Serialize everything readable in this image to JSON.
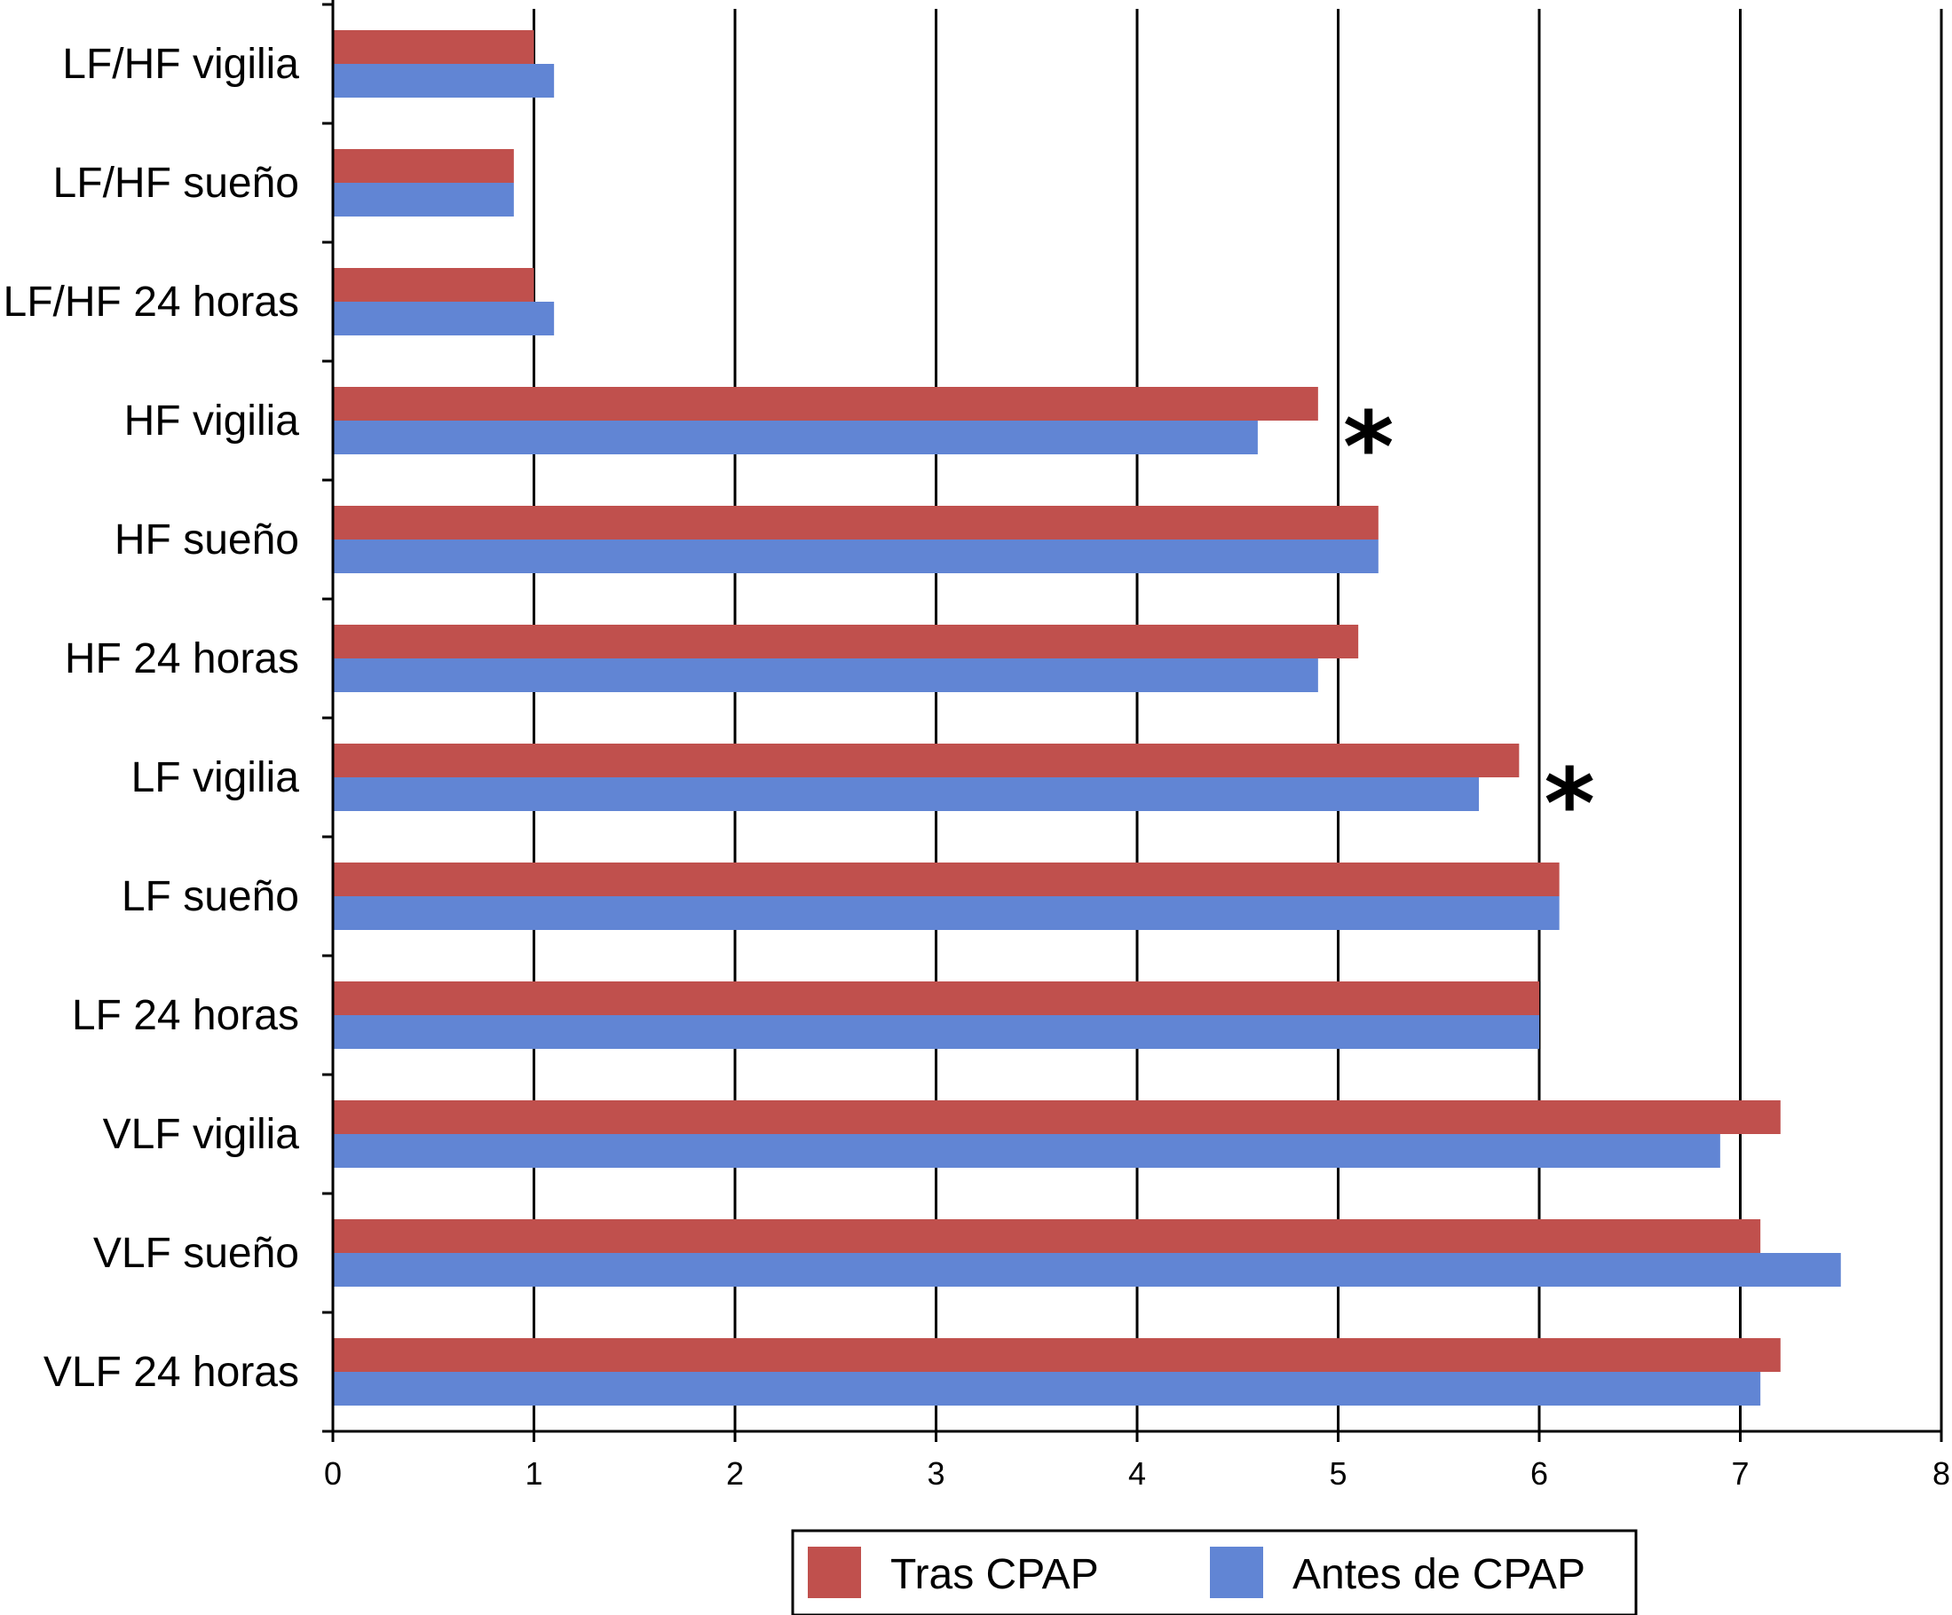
{
  "chart_data": {
    "type": "bar",
    "orientation": "horizontal",
    "categories": [
      "LF/HF vigilia",
      "LF/HF sueño",
      "LF/HF 24 horas",
      "HF vigilia",
      "HF sueño",
      "HF 24 horas",
      "LF vigilia",
      "LF sueño",
      "LF 24 horas",
      "VLF vigilia",
      "VLF sueño",
      "VLF 24 horas"
    ],
    "series": [
      {
        "name": "Tras CPAP",
        "color": "#c0504d",
        "values": [
          1.0,
          0.9,
          1.0,
          4.9,
          5.2,
          5.1,
          5.9,
          6.1,
          6.0,
          7.2,
          7.1,
          7.2
        ]
      },
      {
        "name": "Antes de CPAP",
        "color": "#6185d4",
        "values": [
          1.1,
          0.9,
          1.1,
          4.6,
          5.2,
          4.9,
          5.7,
          6.1,
          6.0,
          6.9,
          7.5,
          7.1
        ]
      }
    ],
    "xlim": [
      0,
      8
    ],
    "xticks": [
      "0",
      "1",
      "2",
      "3",
      "4",
      "5",
      "6",
      "7",
      "8"
    ],
    "grid": "vertical gridlines at each integer",
    "legend_position": "bottom",
    "annotations": [
      {
        "text": "*",
        "category": "HF vigilia"
      },
      {
        "text": "*",
        "category": "LF vigilia"
      }
    ]
  }
}
